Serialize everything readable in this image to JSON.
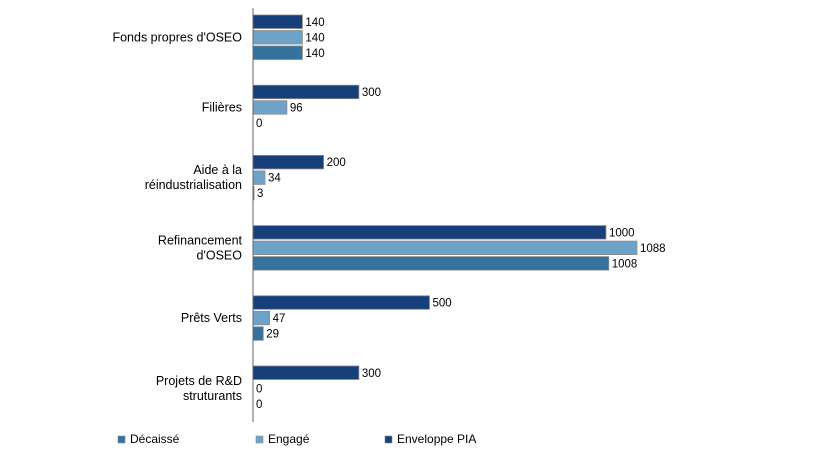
{
  "chart_data": {
    "type": "bar",
    "orientation": "horizontal",
    "categories": [
      [
        "Fonds propres d'OSEO"
      ],
      [
        "Filières"
      ],
      [
        "Aide à la",
        "réindustrialisation"
      ],
      [
        "Refinancement",
        "d'OSEO"
      ],
      [
        "Prêts Verts"
      ],
      [
        "Projets de R&D",
        "struturants"
      ]
    ],
    "series": [
      {
        "name": "Enveloppe PIA",
        "color": "#173f7a",
        "values": [
          140,
          300,
          200,
          1000,
          500,
          300
        ]
      },
      {
        "name": "Engagé",
        "color": "#6ea3c9",
        "values": [
          140,
          96,
          34,
          1088,
          47,
          0
        ]
      },
      {
        "name": "Décaissé",
        "color": "#35729d",
        "values": [
          140,
          0,
          3,
          1008,
          29,
          0
        ]
      }
    ],
    "legend_order": [
      "Décaissé",
      "Engagé",
      "Enveloppe PIA"
    ],
    "legend_position": "bottom",
    "xlim": [
      0,
      1100
    ],
    "grid": false
  }
}
